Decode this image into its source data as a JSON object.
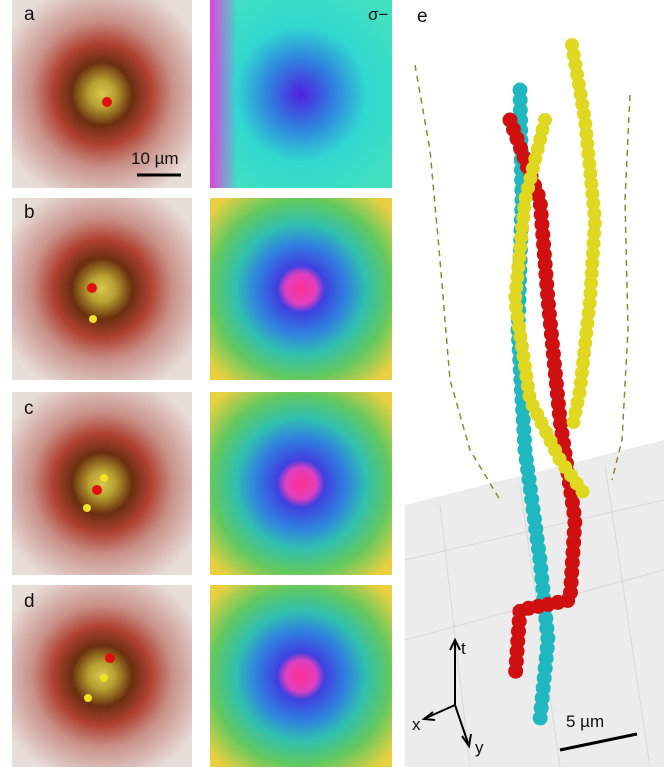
{
  "panels": [
    {
      "label": "a",
      "scale_bar": "10 µm"
    },
    {
      "label": "b"
    },
    {
      "label": "c"
    },
    {
      "label": "d"
    }
  ],
  "polarization": "σ−",
  "panel_e": {
    "label": "e",
    "axes": {
      "t": "t",
      "x": "x",
      "y": "y"
    },
    "scale_bar": "5 µm"
  }
}
